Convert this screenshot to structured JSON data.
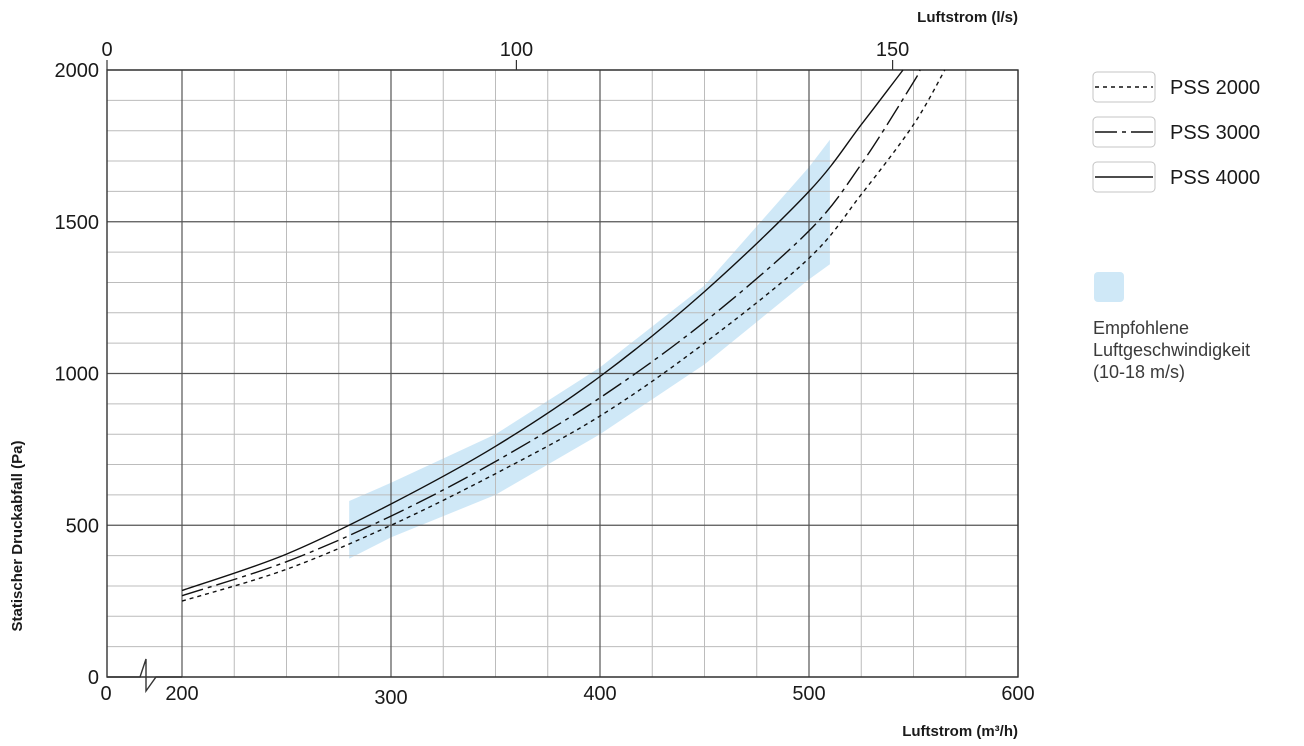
{
  "chart_data": {
    "type": "line",
    "xlabel": "Luftstrom (m³/h)",
    "ylabel": "Statischer Druckabfall (Pa)",
    "x2label": "Luftstrom (l/s)",
    "xlim": [
      200,
      600
    ],
    "ylim": [
      0,
      2000
    ],
    "x_broken_axis_origin": "0",
    "x_ticks": [
      200,
      300,
      400,
      500,
      600
    ],
    "x_tick_labels": [
      "200",
      "300",
      "400",
      "500",
      "600"
    ],
    "y_ticks": [
      0,
      500,
      1000,
      1500,
      2000
    ],
    "y_tick_labels": [
      "0",
      "500",
      "1000",
      "1500",
      "2000"
    ],
    "x2_ticks": [
      0,
      100,
      150
    ],
    "x2_tick_labels": [
      "0",
      "100",
      "150"
    ],
    "grid": true,
    "legend_position": "right",
    "series": [
      {
        "name": "PSS 2000",
        "style": "dotted",
        "x": [
          200,
          250,
          300,
          350,
          400,
          450,
          500,
          525,
          550,
          565
        ],
        "y": [
          250,
          355,
          500,
          670,
          860,
          1100,
          1380,
          1590,
          1820,
          2000
        ]
      },
      {
        "name": "PSS 3000",
        "style": "dash-dot",
        "x": [
          200,
          250,
          300,
          350,
          400,
          450,
          500,
          525,
          550,
          553
        ],
        "y": [
          268,
          380,
          530,
          710,
          920,
          1170,
          1470,
          1690,
          1960,
          2000
        ]
      },
      {
        "name": "PSS 4000",
        "style": "solid",
        "x": [
          200,
          250,
          300,
          350,
          400,
          450,
          500,
          525,
          545
        ],
        "y": [
          285,
          405,
          570,
          760,
          990,
          1270,
          1600,
          1820,
          2000
        ]
      }
    ],
    "band": {
      "label_lines": [
        "Empfohlene",
        "Luftgeschwindigkeit",
        "(10-18 m/s)"
      ],
      "color": "#cfe8f7",
      "x": [
        280,
        300,
        350,
        400,
        450,
        500,
        510
      ],
      "upper": [
        580,
        640,
        800,
        1020,
        1290,
        1680,
        1770
      ],
      "lower": [
        390,
        460,
        600,
        800,
        1030,
        1310,
        1360
      ]
    },
    "colors": {
      "line": "#111111",
      "grid_major": "#555555",
      "grid_minor": "#bcbcbc",
      "band": "#cfe8f7"
    }
  }
}
